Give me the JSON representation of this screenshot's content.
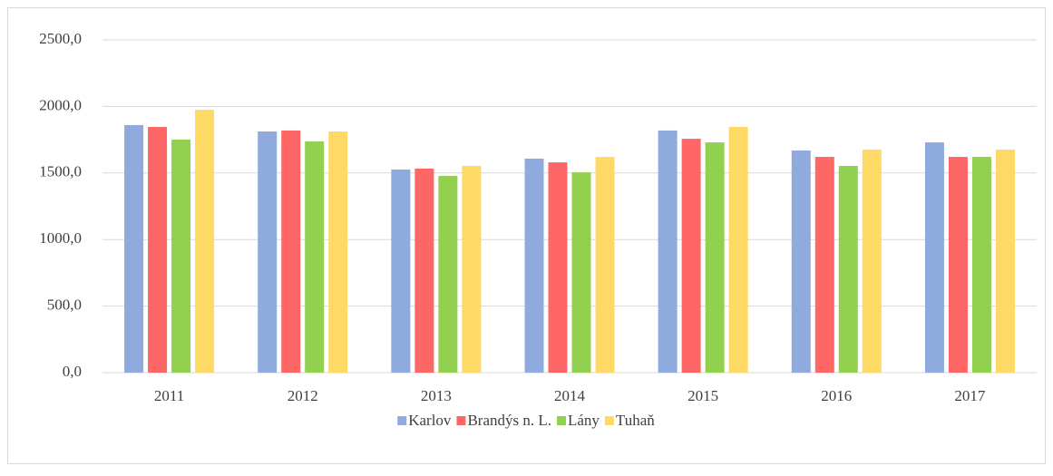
{
  "chart_data": {
    "type": "bar",
    "categories": [
      "2011",
      "2012",
      "2013",
      "2014",
      "2015",
      "2016",
      "2017"
    ],
    "series": [
      {
        "name": "Karlov",
        "color": "#8faadc",
        "values": [
          1860,
          1812,
          1526,
          1608,
          1819,
          1669,
          1730
        ]
      },
      {
        "name": "Brandýs n. L.",
        "color": "#ff6666",
        "values": [
          1846,
          1819,
          1533,
          1580,
          1757,
          1621,
          1621
        ]
      },
      {
        "name": "Lány",
        "color": "#92d050",
        "values": [
          1751,
          1737,
          1478,
          1505,
          1730,
          1553,
          1621
        ]
      },
      {
        "name": "Tuhaň",
        "color": "#ffd966",
        "values": [
          1975,
          1812,
          1553,
          1621,
          1846,
          1676,
          1676
        ]
      }
    ],
    "ylim": [
      0,
      2500
    ],
    "yticks": [
      {
        "value": 0,
        "label": "0,0"
      },
      {
        "value": 500,
        "label": "500,0"
      },
      {
        "value": 1000,
        "label": "1000,0"
      },
      {
        "value": 1500,
        "label": "1500,0"
      },
      {
        "value": 2000,
        "label": "2000,0"
      },
      {
        "value": 2500,
        "label": "2500,0"
      }
    ],
    "grid": true,
    "legend": "bottom"
  }
}
